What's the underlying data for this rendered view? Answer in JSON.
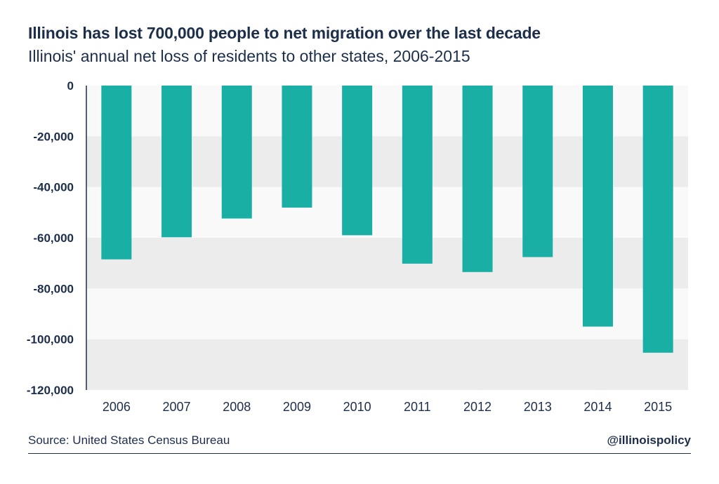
{
  "header": {
    "title": "Illinois has lost 700,000 people to net migration over the last decade",
    "subtitle": "Illinois' annual net loss of residents to other states, 2006-2015"
  },
  "footer": {
    "source": "Source: United States Census Bureau",
    "handle": "@illinoispolicy"
  },
  "colors": {
    "bar": "#1aafa5",
    "band": "#ececec",
    "band_alt": "#faf9fa",
    "text": "#1c2e4a"
  },
  "chart_data": {
    "type": "bar",
    "title": "Illinois has lost 700,000 people to net migration over the last decade",
    "subtitle": "Illinois' annual net loss of residents to other states, 2006-2015",
    "categories": [
      "2006",
      "2007",
      "2008",
      "2009",
      "2010",
      "2011",
      "2012",
      "2013",
      "2014",
      "2015"
    ],
    "values": [
      -68500,
      -59800,
      -52400,
      -48100,
      -59000,
      -70200,
      -73500,
      -67600,
      -95000,
      -105300
    ],
    "ylim": [
      -120000,
      0
    ],
    "yticks": [
      0,
      -20000,
      -40000,
      -60000,
      -80000,
      -100000,
      -120000
    ],
    "ytick_labels": [
      "0",
      "-20,000",
      "-40,000",
      "-60,000",
      "-80,000",
      "-100,000",
      "-120,000"
    ],
    "grid": "alternating horizontal bands",
    "legend": "none"
  }
}
